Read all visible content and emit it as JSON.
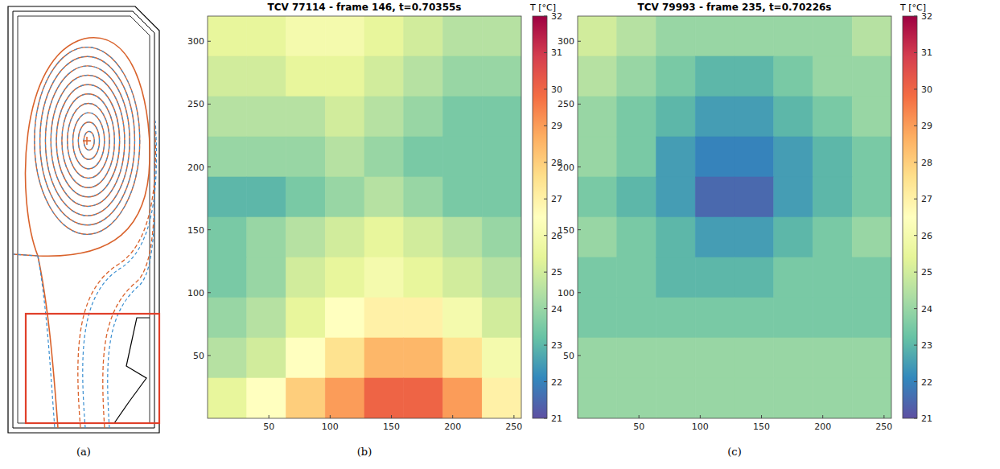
{
  "panel_labels": [
    "(a)",
    "(b)",
    "(c)"
  ],
  "chart_data": [
    {
      "type": "heatmap",
      "title": "TCV 77114 - frame 146, t=0.70355s",
      "xlim": [
        0,
        256
      ],
      "ylim": [
        0,
        320
      ],
      "xticks": [
        50,
        100,
        150,
        200,
        250
      ],
      "yticks": [
        50,
        100,
        150,
        200,
        250,
        300
      ],
      "colorbar_title": "T [°C]",
      "colorbar_range": [
        21,
        32
      ],
      "colorbar_ticks": [
        21,
        22,
        23,
        24,
        25,
        26,
        27,
        28,
        29,
        30,
        31,
        32
      ],
      "cells": [
        [
          25.5,
          25.5,
          26,
          26,
          25.5,
          25,
          24.5,
          24.5
        ],
        [
          25,
          25,
          25.5,
          25.5,
          25,
          24.5,
          24,
          24
        ],
        [
          24.5,
          24.5,
          24.5,
          25,
          24.5,
          24,
          23.5,
          23.5
        ],
        [
          24,
          24,
          24,
          24.5,
          24,
          23.5,
          23.5,
          23.5
        ],
        [
          23,
          23,
          23.5,
          24,
          24.5,
          24,
          23.5,
          23.5
        ],
        [
          23.5,
          24,
          24.5,
          25,
          25.5,
          25,
          24.5,
          24
        ],
        [
          23.5,
          24,
          25,
          25.5,
          26,
          25.5,
          25,
          24.5
        ],
        [
          24,
          24.5,
          25.5,
          26.5,
          27,
          27,
          26,
          25
        ],
        [
          24.5,
          25,
          26.5,
          27.5,
          28.5,
          28.5,
          27.5,
          26
        ],
        [
          25.5,
          26.5,
          28,
          29,
          30,
          30,
          29,
          27
        ]
      ]
    },
    {
      "type": "heatmap",
      "title": "TCV 79993 - frame 235, t=0.70226s",
      "xlim": [
        0,
        256
      ],
      "ylim": [
        0,
        320
      ],
      "xticks": [
        50,
        100,
        150,
        200,
        250
      ],
      "yticks": [
        50,
        100,
        150,
        200,
        250,
        300
      ],
      "colorbar_title": "T [°C]",
      "colorbar_range": [
        21,
        32
      ],
      "colorbar_ticks": [
        21,
        22,
        23,
        24,
        25,
        26,
        27,
        28,
        29,
        30,
        31,
        32
      ],
      "cells": [
        [
          25,
          24.5,
          24,
          24,
          24,
          24,
          24,
          24.5
        ],
        [
          24.5,
          24,
          23.5,
          23,
          23,
          23.5,
          24,
          24
        ],
        [
          24,
          23.5,
          23,
          22.5,
          22.5,
          23,
          23.5,
          24
        ],
        [
          24,
          23.5,
          22.5,
          22,
          22,
          22.5,
          23,
          23.5
        ],
        [
          23.5,
          23,
          22.5,
          21.5,
          21.5,
          22.5,
          23,
          23.5
        ],
        [
          24,
          23.5,
          23,
          22.5,
          22.5,
          23,
          23.5,
          24
        ],
        [
          23.5,
          23.5,
          23,
          23,
          23,
          23.5,
          23.5,
          23.5
        ],
        [
          23.5,
          23.5,
          23.5,
          23.5,
          23.5,
          23.5,
          23.5,
          23.5
        ],
        [
          24,
          24,
          24,
          24,
          24,
          24,
          24,
          24
        ],
        [
          24,
          24,
          24,
          24,
          24,
          24,
          24,
          24
        ]
      ]
    }
  ]
}
